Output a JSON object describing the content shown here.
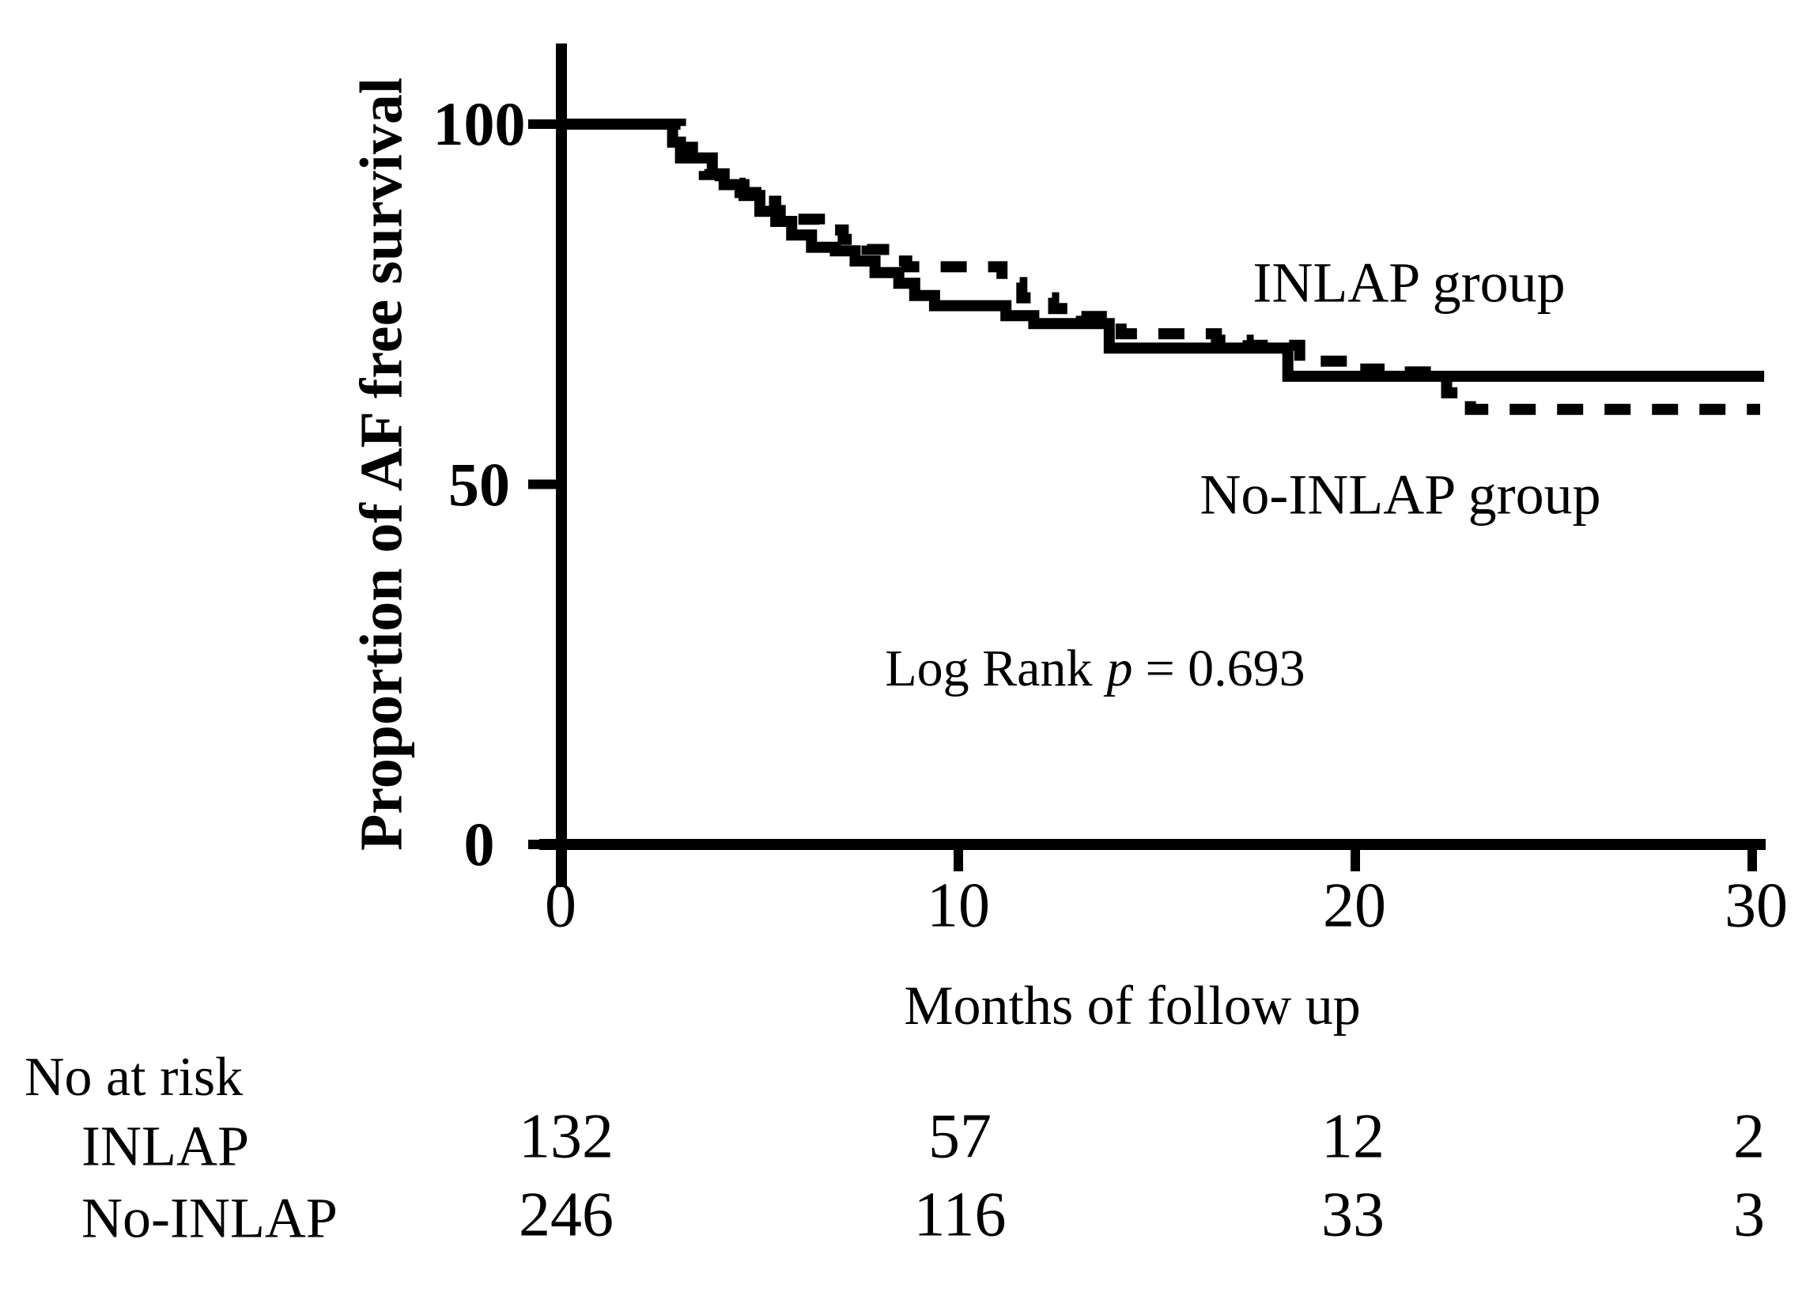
{
  "figure": {
    "background": "#ffffff",
    "ink_color": "#000000"
  },
  "chart_data": {
    "type": "line",
    "subtype": "kaplan-meier-step",
    "title": "",
    "xlabel": "Months of follow up",
    "ylabel": "Proportion of AF free survival",
    "xlim": [
      0,
      30
    ],
    "ylim": [
      0,
      100
    ],
    "x_ticks": [
      0,
      10,
      20,
      30
    ],
    "y_ticks": [
      100,
      50,
      0
    ],
    "grid": "off",
    "legend_position": "labels-on-plot",
    "annotation": {
      "prefix": "Log Rank",
      "p_symbol": "p",
      "rest": "= 0.693",
      "full_text": "Log Rank p = 0.693"
    },
    "series": [
      {
        "name": "INLAP group",
        "line_style": "solid",
        "color": "#000000",
        "step_points": [
          [
            0,
            100
          ],
          [
            2.8,
            97.5
          ],
          [
            3.0,
            95.3
          ],
          [
            3.8,
            93.1
          ],
          [
            4.1,
            91.6
          ],
          [
            4.6,
            90.1
          ],
          [
            5.0,
            87.9
          ],
          [
            5.4,
            86.5
          ],
          [
            5.8,
            84.6
          ],
          [
            6.3,
            82.9
          ],
          [
            6.9,
            82.4
          ],
          [
            7.4,
            81.0
          ],
          [
            7.9,
            79.4
          ],
          [
            8.5,
            77.9
          ],
          [
            8.9,
            76.2
          ],
          [
            9.4,
            74.8
          ],
          [
            11.2,
            73.4
          ],
          [
            11.9,
            72.3
          ],
          [
            13.8,
            68.9
          ],
          [
            18.3,
            65.0
          ],
          [
            30.3,
            65.0
          ]
        ]
      },
      {
        "name": "No-INLAP group",
        "line_style": "dashed",
        "color": "#000000",
        "step_points": [
          [
            0,
            100
          ],
          [
            3.0,
            96.8
          ],
          [
            3.3,
            94.8
          ],
          [
            3.6,
            93.0
          ],
          [
            4.0,
            91.8
          ],
          [
            4.5,
            90.5
          ],
          [
            4.9,
            89.3
          ],
          [
            5.4,
            88.0
          ],
          [
            5.9,
            86.8
          ],
          [
            6.5,
            85.3
          ],
          [
            7.1,
            84.0
          ],
          [
            7.7,
            82.6
          ],
          [
            8.3,
            81.0
          ],
          [
            8.7,
            80.2
          ],
          [
            11.1,
            78.0
          ],
          [
            11.6,
            75.9
          ],
          [
            12.4,
            74.4
          ],
          [
            13.1,
            73.3
          ],
          [
            14.1,
            70.9
          ],
          [
            16.5,
            70.0
          ],
          [
            17.3,
            69.3
          ],
          [
            18.6,
            67.1
          ],
          [
            19.9,
            66.0
          ],
          [
            20.6,
            65.6
          ],
          [
            22.3,
            62.7
          ],
          [
            22.9,
            60.4
          ],
          [
            30.2,
            60.4
          ]
        ]
      }
    ],
    "risk_table": {
      "header": "No at risk",
      "columns": [
        0,
        10,
        20,
        30
      ],
      "rows": [
        {
          "label": "INLAP",
          "values": [
            132,
            57,
            12,
            2
          ]
        },
        {
          "label": "No-INLAP",
          "values": [
            246,
            116,
            33,
            3
          ]
        }
      ]
    }
  }
}
